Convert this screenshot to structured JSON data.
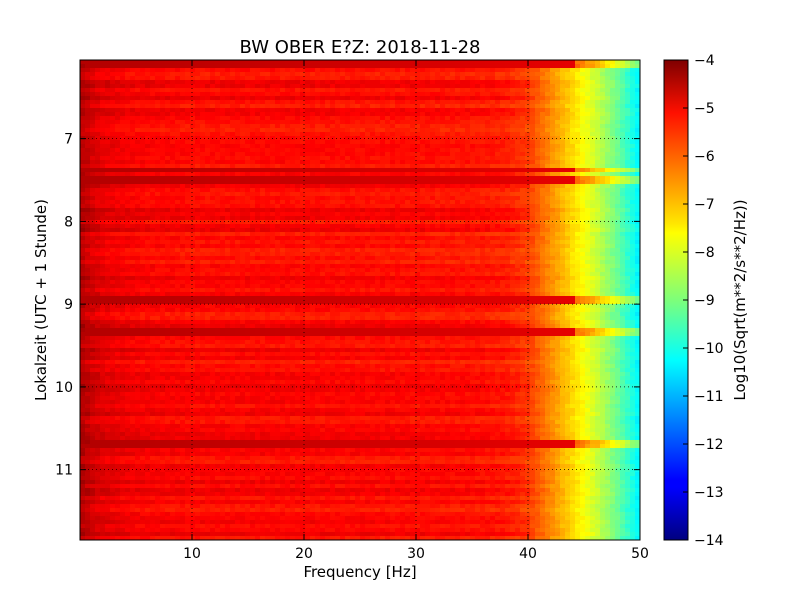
{
  "chart_data": {
    "type": "heatmap",
    "title": "BW OBER E?Z: 2018-11-28",
    "xlabel": "Frequency [Hz]",
    "ylabel": "Lokalzeit (UTC + 1 Stunde)",
    "xlim": [
      0,
      50
    ],
    "ylim": [
      11.85,
      6.05
    ],
    "xticks": [
      10,
      20,
      30,
      40,
      50
    ],
    "yticks": [
      7,
      8,
      9,
      10,
      11
    ],
    "grid": true,
    "colorbar": {
      "label": "Log10(Sqrt(m**2/s**2/Hz))",
      "range": [
        -14,
        -4
      ],
      "ticks": [
        -14,
        -13,
        -12,
        -11,
        -10,
        -9,
        -8,
        -7,
        -6,
        -5,
        -4
      ],
      "colormap": "jet"
    },
    "spectrum_profile": {
      "frequency_hz": [
        0,
        1,
        2,
        5,
        10,
        20,
        30,
        35,
        38,
        40,
        41,
        42,
        43,
        44,
        45,
        46,
        47,
        48,
        49,
        50
      ],
      "level": [
        -4.5,
        -4.8,
        -5.0,
        -5.2,
        -5.3,
        -5.3,
        -5.35,
        -5.4,
        -5.5,
        -5.8,
        -6.2,
        -6.6,
        -7.0,
        -7.4,
        -7.8,
        -8.2,
        -8.7,
        -9.2,
        -9.8,
        -10.4
      ]
    },
    "bright_lines": [
      {
        "time": 7.38,
        "level": -4.3
      },
      {
        "time": 9.35,
        "level": -4.7
      },
      {
        "time": 8.95,
        "level": -4.8
      },
      {
        "time": 10.7,
        "level": -4.6
      },
      {
        "time": 6.1,
        "level": -4.7
      },
      {
        "time": 7.5,
        "level": -4.8
      }
    ]
  }
}
